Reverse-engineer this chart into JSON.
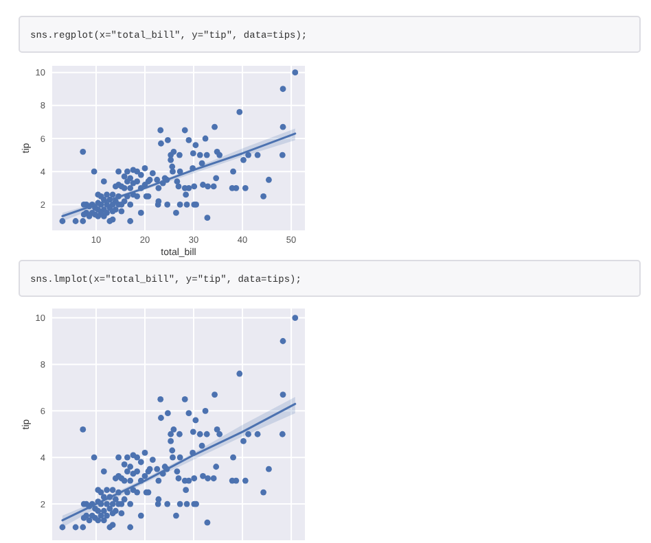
{
  "chart_data": [
    {
      "type": "scatter",
      "title": "sns.regplot(x=\"total_bill\", y=\"tip\", data=tips);",
      "xlabel": "total_bill",
      "ylabel": "tip",
      "xlim": [
        1,
        52.8
      ],
      "ylim": [
        0.44,
        10.4
      ],
      "xticks": [
        10,
        20,
        30,
        40,
        50
      ],
      "yticks": [
        2,
        4,
        6,
        8,
        10
      ],
      "grid": true,
      "series": [
        {
          "type": "scatter",
          "marker": "circle",
          "color": "#4c72b0",
          "x": [
            50.8,
            48.3,
            48.3,
            48.2,
            39.4,
            7.3,
            3.1,
            5.8,
            7.3,
            32.7,
            44.3,
            45.4,
            40.6,
            38.1,
            38.7,
            37.9,
            41.2,
            43.1,
            40.2,
            34.8,
            34.6,
            35.3,
            34.3,
            32.8,
            32.4,
            31.3,
            30.4,
            29,
            29,
            28.4,
            28.2,
            26.9,
            26.4,
            25.7,
            25.6,
            25.3,
            25.3,
            24.7,
            24.5,
            24.1,
            23.7,
            23.3,
            23.2,
            22.8,
            22.8,
            22.7,
            22.5,
            21.6,
            21,
            20.7,
            20.7,
            24.6,
            25.9,
            26.6,
            27.1,
            27.2,
            27.2,
            28.2,
            28.6,
            29.8,
            29.9,
            30.1,
            30.1,
            30.5,
            31.7,
            31.9,
            32.9,
            34.1,
            20,
            20,
            20.3,
            19.2,
            19.2,
            19.2,
            18.4,
            18.4,
            18.4,
            17.6,
            17.6,
            17.6,
            17,
            17,
            17,
            17,
            16.4,
            16.4,
            16.4,
            15.8,
            15.8,
            15.8,
            15.2,
            15.2,
            15.2,
            14.6,
            14.6,
            14.6,
            14.6,
            14,
            14,
            14,
            13.4,
            13.4,
            13.4,
            13.4,
            12.8,
            12.8,
            12.8,
            12.2,
            12.2,
            12.2,
            11.6,
            11.6,
            11.6,
            11.6,
            11,
            11,
            11,
            10.4,
            10.4,
            10.4,
            10.4,
            9.8,
            9.8,
            9.6,
            9.2,
            9.2,
            8.6,
            8.6,
            8,
            8,
            7.5,
            7.5
          ],
          "values": [
            10,
            9,
            6.7,
            5,
            7.6,
            5.2,
            1,
            1,
            1,
            5,
            2.5,
            3.5,
            3,
            4,
            3,
            3,
            5,
            5,
            4.7,
            5.2,
            3.6,
            5,
            6.7,
            1.2,
            6,
            5,
            5.6,
            5.9,
            3,
            2.6,
            6.5,
            3.1,
            1.5,
            4,
            4.3,
            5,
            4.7,
            5.9,
            3.5,
            3.6,
            3.3,
            5.7,
            6.5,
            2.2,
            3,
            2,
            3.5,
            3.9,
            3.5,
            2.5,
            3.4,
            2,
            5.2,
            3.4,
            5,
            2,
            4,
            3,
            2,
            4.2,
            5.1,
            2,
            3.1,
            2,
            4.5,
            3.2,
            3.1,
            3.1,
            4.2,
            3.2,
            2.5,
            3,
            1.5,
            3.8,
            4,
            3.4,
            2.5,
            4.1,
            3.3,
            2.6,
            3.6,
            3,
            2,
            1,
            4,
            3.4,
            2.5,
            3,
            2.2,
            3.7,
            3.1,
            2,
            1.6,
            4,
            2.5,
            3.2,
            2,
            3.1,
            2.2,
            1.7,
            2.6,
            2,
            1.6,
            1.1,
            2.3,
            1.8,
            1,
            2.6,
            2,
            1.5,
            3.4,
            2.3,
            1.7,
            1.3,
            2,
            1.5,
            2.5,
            2.6,
            1.7,
            1.3,
            2.1,
            1.8,
            1.4,
            4,
            2,
            1.5,
            1.9,
            1.3,
            2,
            1.5,
            2,
            1.4
          ]
        },
        {
          "type": "line",
          "color": "#4c72b0",
          "x": [
            3.1,
            10,
            20,
            30,
            40,
            50.8
          ],
          "values": [
            1.3,
            2,
            3,
            4.1,
            5.1,
            6.3
          ],
          "lower": [
            1,
            1.8,
            2.9,
            3.9,
            4.9,
            5.9
          ],
          "upper": [
            1.5,
            2.1,
            3.1,
            4.2,
            5.4,
            6.6
          ]
        }
      ]
    },
    {
      "type": "scatter",
      "title": "sns.lmplot(x=\"total_bill\", y=\"tip\", data=tips);",
      "ylabel": "tip",
      "xlim": [
        1,
        52.8
      ],
      "ylim": [
        0.44,
        10.4
      ],
      "xticks": [
        10,
        20,
        30,
        40,
        50
      ],
      "yticks": [
        2,
        4,
        6,
        8,
        10
      ],
      "tick_labels": "y",
      "grid": true,
      "series": [
        {
          "type": "scatter",
          "marker": "circle",
          "color": "#4c72b0",
          "x": [
            50.8,
            48.3,
            48.3,
            48.2,
            39.4,
            7.3,
            3.1,
            5.8,
            7.3,
            32.7,
            44.3,
            45.4,
            40.6,
            38.1,
            38.7,
            37.9,
            41.2,
            43.1,
            40.2,
            34.8,
            34.6,
            35.3,
            34.3,
            32.8,
            32.4,
            31.3,
            30.4,
            29,
            29,
            28.4,
            28.2,
            26.9,
            26.4,
            25.7,
            25.6,
            25.3,
            25.3,
            24.7,
            24.5,
            24.1,
            23.7,
            23.3,
            23.2,
            22.8,
            22.8,
            22.7,
            22.5,
            21.6,
            21,
            20.7,
            20.7,
            24.6,
            25.9,
            26.6,
            27.1,
            27.2,
            27.2,
            28.2,
            28.6,
            29.8,
            29.9,
            30.1,
            30.1,
            30.5,
            31.7,
            31.9,
            32.9,
            34.1,
            20,
            20,
            20.3,
            19.2,
            19.2,
            19.2,
            18.4,
            18.4,
            18.4,
            17.6,
            17.6,
            17.6,
            17,
            17,
            17,
            17,
            16.4,
            16.4,
            16.4,
            15.8,
            15.8,
            15.8,
            15.2,
            15.2,
            15.2,
            14.6,
            14.6,
            14.6,
            14.6,
            14,
            14,
            14,
            13.4,
            13.4,
            13.4,
            13.4,
            12.8,
            12.8,
            12.8,
            12.2,
            12.2,
            12.2,
            11.6,
            11.6,
            11.6,
            11.6,
            11,
            11,
            11,
            10.4,
            10.4,
            10.4,
            10.4,
            9.8,
            9.8,
            9.6,
            9.2,
            9.2,
            8.6,
            8.6,
            8,
            8,
            7.5,
            7.5
          ],
          "values": [
            10,
            9,
            6.7,
            5,
            7.6,
            5.2,
            1,
            1,
            1,
            5,
            2.5,
            3.5,
            3,
            4,
            3,
            3,
            5,
            5,
            4.7,
            5.2,
            3.6,
            5,
            6.7,
            1.2,
            6,
            5,
            5.6,
            5.9,
            3,
            2.6,
            6.5,
            3.1,
            1.5,
            4,
            4.3,
            5,
            4.7,
            5.9,
            3.5,
            3.6,
            3.3,
            5.7,
            6.5,
            2.2,
            3,
            2,
            3.5,
            3.9,
            3.5,
            2.5,
            3.4,
            2,
            5.2,
            3.4,
            5,
            2,
            4,
            3,
            2,
            4.2,
            5.1,
            2,
            3.1,
            2,
            4.5,
            3.2,
            3.1,
            3.1,
            4.2,
            3.2,
            2.5,
            3,
            1.5,
            3.8,
            4,
            3.4,
            2.5,
            4.1,
            3.3,
            2.6,
            3.6,
            3,
            2,
            1,
            4,
            3.4,
            2.5,
            3,
            2.2,
            3.7,
            3.1,
            2,
            1.6,
            4,
            2.5,
            3.2,
            2,
            3.1,
            2.2,
            1.7,
            2.6,
            2,
            1.6,
            1.1,
            2.3,
            1.8,
            1,
            2.6,
            2,
            1.5,
            3.4,
            2.3,
            1.7,
            1.3,
            2,
            1.5,
            2.5,
            2.6,
            1.7,
            1.3,
            2.1,
            1.8,
            1.4,
            4,
            2,
            1.5,
            1.9,
            1.3,
            2,
            1.5,
            2,
            1.4
          ]
        },
        {
          "type": "line",
          "color": "#4c72b0",
          "x": [
            3.1,
            10,
            20,
            30,
            40,
            50.8
          ],
          "values": [
            1.3,
            2,
            3,
            4.1,
            5.1,
            6.3
          ],
          "lower": [
            1,
            1.8,
            2.9,
            3.9,
            4.9,
            5.9
          ],
          "upper": [
            1.5,
            2.1,
            3.1,
            4.2,
            5.4,
            6.6
          ]
        }
      ]
    }
  ]
}
